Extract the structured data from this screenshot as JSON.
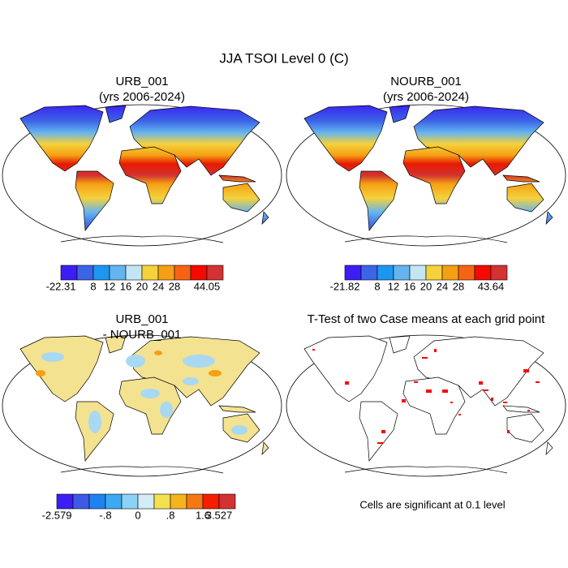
{
  "title": "JJA TSOI Level 0 (C)",
  "panels": [
    {
      "title": [
        "URB_001",
        "(yrs 2006-2024)"
      ]
    },
    {
      "title": [
        "NOURB_001",
        "(yrs 2006-2024)"
      ]
    },
    {
      "title": [
        "URB_001",
        "- NOURB_001"
      ]
    },
    {
      "title": [
        "T-Test of two Case means at each grid point"
      ]
    }
  ],
  "colorbars": [
    {
      "labels": [
        "-22.31",
        null,
        "8",
        "12",
        "16",
        "20",
        "24",
        "28",
        null,
        "44.05"
      ],
      "colors": [
        "#3c1ef5",
        "#3c64e6",
        "#1e96f0",
        "#64b4f0",
        "#c3e6f5",
        "#f5d23c",
        "#f5a014",
        "#f56414",
        "#f50a00",
        "#d23232"
      ]
    },
    {
      "labels": [
        "-21.82",
        null,
        "8",
        "12",
        "16",
        "20",
        "24",
        "28",
        null,
        "43.64"
      ],
      "colors": [
        "#3c1ef5",
        "#3c64e6",
        "#1e96f0",
        "#64b4f0",
        "#c3e6f5",
        "#f5d23c",
        "#f5a014",
        "#f56414",
        "#f50a00",
        "#d23232"
      ]
    },
    {
      "labels": [
        "-2.579",
        null,
        null,
        "-.8",
        null,
        "0",
        null,
        ".8",
        null,
        "1.6",
        "3.527"
      ],
      "colors": [
        "#3c1ef5",
        "#3c5ae6",
        "#1e82f0",
        "#3caaf0",
        "#8cd2f5",
        "#d2ecf8",
        "#f5e150",
        "#f5b41e",
        "#f57814",
        "#f51e00",
        "#d23232"
      ]
    }
  ],
  "note": "Cells are significant at 0.1 level"
}
